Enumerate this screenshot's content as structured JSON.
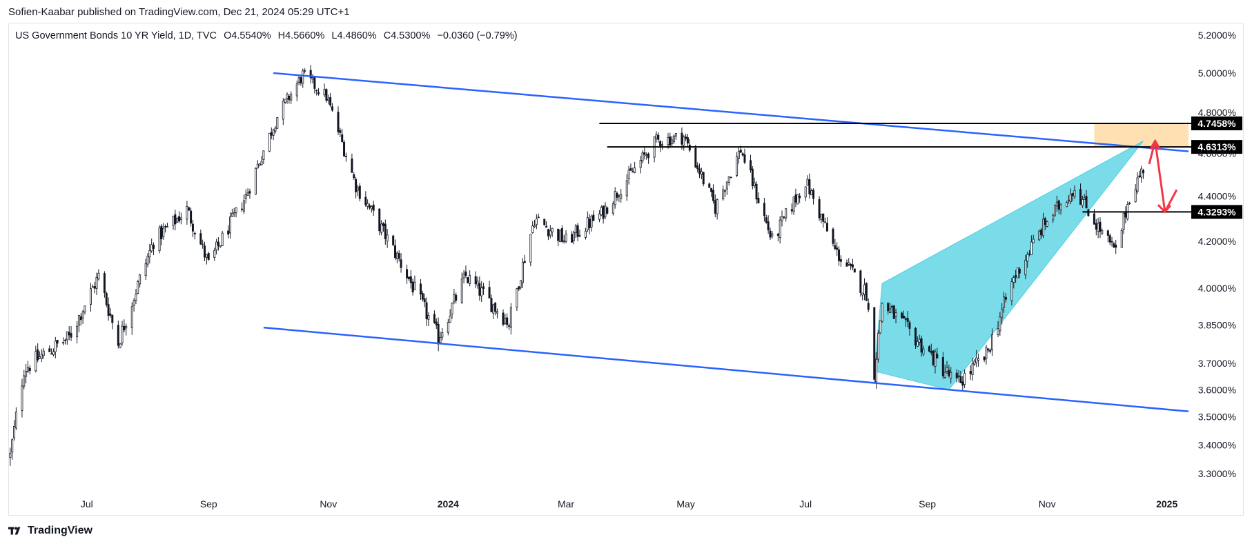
{
  "header": {
    "publisher": "Sofien-Kaabar published on TradingView.com, Dec 21, 2024 05:29 UTC+1"
  },
  "legend": {
    "symbol": "US Government Bonds 10 YR Yield, 1D, TVC",
    "open": "O4.5540%",
    "high": "H4.5660%",
    "low": "L4.4860%",
    "close": "C4.5300%",
    "change": "−0.0360 (−0.79%)"
  },
  "footer": {
    "brand": "TradingView"
  },
  "colors": {
    "up": "#131722",
    "channel": "#2962ff",
    "wedge_fill": "#4dd0e1",
    "zone_fill": "#ffe0b2",
    "arrow": "#f23645",
    "level_line": "#000000"
  },
  "chart_data": {
    "type": "candlestick",
    "y_axis": {
      "labels": [
        "5.2000%",
        "5.0000%",
        "4.8000%",
        "4.6000%",
        "4.4000%",
        "4.2000%",
        "4.0000%",
        "3.8500%",
        "3.7000%",
        "3.6000%",
        "3.5000%",
        "3.4000%",
        "3.3000%"
      ],
      "values": [
        5.2,
        5.0,
        4.8,
        4.6,
        4.4,
        4.2,
        4.0,
        3.85,
        3.7,
        3.6,
        3.5,
        3.4,
        3.3
      ],
      "scale": "log"
    },
    "x_axis": {
      "labels": [
        "Jul",
        "Sep",
        "Nov",
        "2024",
        "Mar",
        "May",
        "Jul",
        "Sep",
        "Nov",
        "2025"
      ],
      "bold": [
        "2024",
        "2025"
      ],
      "dates": [
        "2023-07-01",
        "2023-09-01",
        "2023-11-01",
        "2024-01-01",
        "2024-03-01",
        "2024-05-01",
        "2024-07-01",
        "2024-09-01",
        "2024-11-01",
        "2025-01-01"
      ],
      "range": [
        "2023-05-22",
        "2025-01-12"
      ]
    },
    "series_anchors": [
      [
        "2023-05-23",
        3.36
      ],
      [
        "2023-05-30",
        3.68
      ],
      [
        "2023-06-12",
        3.75
      ],
      [
        "2023-06-22",
        3.8
      ],
      [
        "2023-07-07",
        4.05
      ],
      [
        "2023-07-17",
        3.78
      ],
      [
        "2023-08-04",
        4.2
      ],
      [
        "2023-08-21",
        4.34
      ],
      [
        "2023-09-01",
        4.1
      ],
      [
        "2023-09-20",
        4.4
      ],
      [
        "2023-10-06",
        4.78
      ],
      [
        "2023-10-19",
        4.99
      ],
      [
        "2023-10-31",
        4.88
      ],
      [
        "2023-11-15",
        4.45
      ],
      [
        "2023-12-05",
        4.15
      ],
      [
        "2023-12-27",
        3.8
      ],
      [
        "2024-01-10",
        4.05
      ],
      [
        "2024-02-01",
        3.86
      ],
      [
        "2024-02-14",
        4.3
      ],
      [
        "2024-03-01",
        4.2
      ],
      [
        "2024-03-19",
        4.32
      ],
      [
        "2024-04-16",
        4.66
      ],
      [
        "2024-04-30",
        4.68
      ],
      [
        "2024-05-16",
        4.35
      ],
      [
        "2024-05-29",
        4.62
      ],
      [
        "2024-06-14",
        4.2
      ],
      [
        "2024-07-01",
        4.47
      ],
      [
        "2024-07-16",
        4.16
      ],
      [
        "2024-08-01",
        3.98
      ],
      [
        "2024-08-05",
        3.67
      ],
      [
        "2024-08-09",
        3.94
      ],
      [
        "2024-09-16",
        3.62
      ],
      [
        "2024-10-01",
        3.73
      ],
      [
        "2024-10-15",
        4.04
      ],
      [
        "2024-10-31",
        4.28
      ],
      [
        "2024-11-15",
        4.44
      ],
      [
        "2024-11-27",
        4.26
      ],
      [
        "2024-12-06",
        4.15
      ],
      [
        "2024-12-13",
        4.4
      ],
      [
        "2024-12-20",
        4.53
      ]
    ],
    "annotations": {
      "levels": [
        {
          "label": "4.7458%",
          "value": 4.7458,
          "from": "2024-03-18"
        },
        {
          "label": "4.6313%",
          "value": 4.6313,
          "from": "2024-03-22"
        },
        {
          "label": "4.3293%",
          "value": 4.3293,
          "from": "2024-11-19"
        }
      ],
      "channel_upper": [
        [
          "2023-10-04",
          5.0
        ],
        [
          "2025-01-12",
          4.61
        ]
      ],
      "channel_lower": [
        [
          "2023-09-29",
          3.84
        ],
        [
          "2025-01-12",
          3.52
        ]
      ],
      "resistance_zone": {
        "from": "2024-11-25",
        "to": "2025-01-12",
        "low": 4.6313,
        "high": 4.7458
      },
      "wedge": [
        [
          "2024-08-05",
          3.67
        ],
        [
          "2024-08-09",
          4.02
        ],
        [
          "2024-12-20",
          4.66
        ],
        [
          "2024-09-12",
          3.6
        ]
      ],
      "arrow_path": [
        [
          "2024-12-23",
          4.55
        ],
        [
          "2024-12-26",
          4.66
        ],
        [
          "2024-12-31",
          4.33
        ],
        [
          "2025-01-06",
          4.43
        ]
      ]
    }
  }
}
